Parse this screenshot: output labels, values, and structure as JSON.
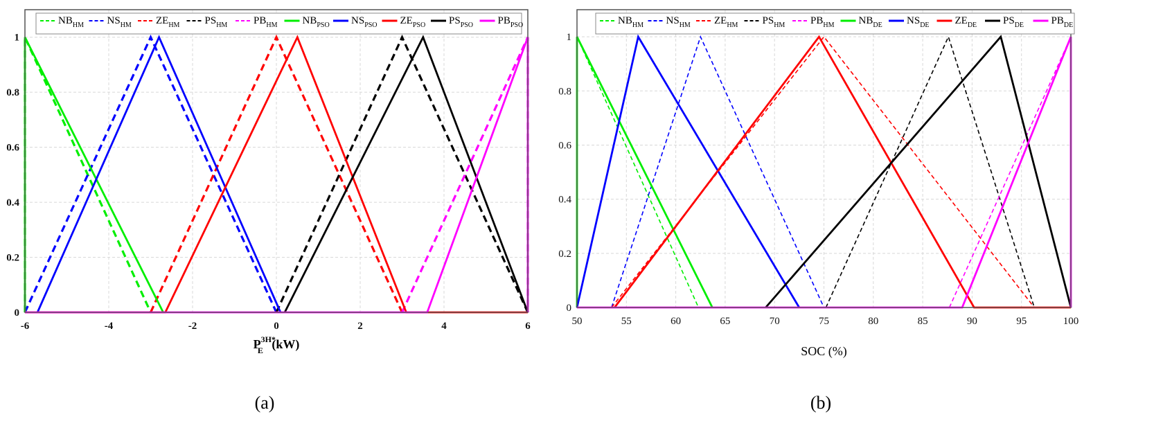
{
  "colors": {
    "NB": "#00ee00",
    "NS": "#0000ff",
    "ZE": "#ff0000",
    "PS": "#000000",
    "PB": "#ff00ff",
    "grid": "#d8d8d8",
    "frame": "#555555",
    "panel_bg": "#ebebeb",
    "tick_text": "#111111"
  },
  "chart_data": [
    {
      "type": "line",
      "panel_label": "(a)",
      "xlabel": {
        "main": "P",
        "sub": "E",
        "sup": "3H*",
        "unit": " (kW)"
      },
      "ylabel": "",
      "xlim": [
        -6,
        6
      ],
      "ylim": [
        0,
        1.1
      ],
      "xticks": [
        -6,
        -4,
        -2,
        0,
        2,
        4,
        6
      ],
      "yticks": [
        0,
        0.2,
        0.4,
        0.6,
        0.8,
        1
      ],
      "ytick_labels": [
        "0",
        "0.2",
        "0.4",
        "0.6",
        "0.8",
        "1"
      ],
      "grid": true,
      "legend_position": "top",
      "series": [
        {
          "name": "NB",
          "sub": "HM",
          "color": "NB",
          "dash": true,
          "x": [
            -6,
            -6,
            -3
          ],
          "y": [
            0,
            1,
            0
          ]
        },
        {
          "name": "NS",
          "sub": "HM",
          "color": "NS",
          "dash": true,
          "x": [
            -6,
            -3,
            0
          ],
          "y": [
            0,
            1,
            0
          ]
        },
        {
          "name": "ZE",
          "sub": "HM",
          "color": "ZE",
          "dash": true,
          "x": [
            -3,
            0,
            3
          ],
          "y": [
            0,
            1,
            0
          ]
        },
        {
          "name": "PS",
          "sub": "HM",
          "color": "PS",
          "dash": true,
          "x": [
            0,
            3,
            6
          ],
          "y": [
            0,
            1,
            0
          ]
        },
        {
          "name": "PB",
          "sub": "HM",
          "color": "PB",
          "dash": true,
          "x": [
            3,
            6,
            6
          ],
          "y": [
            0,
            1,
            0
          ]
        },
        {
          "name": "NB",
          "sub": "PSO",
          "color": "NB",
          "dash": false,
          "x": [
            -6,
            -6,
            -2.7
          ],
          "y": [
            0,
            1,
            0
          ]
        },
        {
          "name": "NS",
          "sub": "PSO",
          "color": "NS",
          "dash": false,
          "x": [
            -5.7,
            -2.8,
            0.1
          ],
          "y": [
            0,
            1,
            0
          ]
        },
        {
          "name": "ZE",
          "sub": "PSO",
          "color": "ZE",
          "dash": false,
          "x": [
            -6,
            -2.65,
            0.5,
            3.1,
            6
          ],
          "y": [
            0,
            0,
            1,
            0,
            0
          ]
        },
        {
          "name": "PS",
          "sub": "PSO",
          "color": "PS",
          "dash": false,
          "x": [
            0.2,
            3.5,
            6
          ],
          "y": [
            0,
            1,
            0
          ]
        },
        {
          "name": "PB",
          "sub": "PSO",
          "color": "PB",
          "dash": false,
          "x": [
            -6,
            3.6,
            6,
            6
          ],
          "y": [
            0,
            0,
            1,
            0
          ]
        }
      ]
    },
    {
      "type": "line",
      "panel_label": "(b)",
      "xlabel": {
        "main": "SOC (%)",
        "sub": "",
        "sup": "",
        "unit": ""
      },
      "ylabel": "",
      "xlim": [
        50,
        100
      ],
      "ylim": [
        0,
        1.1
      ],
      "xticks": [
        50,
        55,
        60,
        65,
        70,
        75,
        80,
        85,
        90,
        95,
        100
      ],
      "yticks": [
        0,
        0.2,
        0.4,
        0.6,
        0.8,
        1
      ],
      "ytick_labels": [
        "0",
        "0.2",
        "0.4",
        "0.6",
        "0.8",
        "1"
      ],
      "grid": true,
      "legend_position": "top",
      "series": [
        {
          "name": "NB",
          "sub": "HM",
          "color": "NB",
          "dash": true,
          "x": [
            50,
            50,
            62.3
          ],
          "y": [
            0,
            1,
            0
          ]
        },
        {
          "name": "NS",
          "sub": "HM",
          "color": "NS",
          "dash": true,
          "x": [
            53.5,
            62.5,
            75
          ],
          "y": [
            0,
            1,
            0
          ]
        },
        {
          "name": "ZE",
          "sub": "HM",
          "color": "ZE",
          "dash": true,
          "x": [
            53.5,
            75,
            96.3
          ],
          "y": [
            0,
            1,
            0
          ]
        },
        {
          "name": "PS",
          "sub": "HM",
          "color": "PS",
          "dash": true,
          "x": [
            75.2,
            87.6,
            96.3
          ],
          "y": [
            0,
            1,
            0
          ]
        },
        {
          "name": "PB",
          "sub": "HM",
          "color": "PB",
          "dash": true,
          "x": [
            87.7,
            100,
            100
          ],
          "y": [
            0,
            1,
            0
          ]
        },
        {
          "name": "NB",
          "sub": "DE",
          "color": "NB",
          "dash": false,
          "x": [
            50,
            50,
            63.7
          ],
          "y": [
            0,
            1,
            0
          ]
        },
        {
          "name": "NS",
          "sub": "DE",
          "color": "NS",
          "dash": false,
          "x": [
            50,
            56.2,
            72.5
          ],
          "y": [
            0,
            1,
            0
          ]
        },
        {
          "name": "ZE",
          "sub": "DE",
          "color": "ZE",
          "dash": false,
          "x": [
            53.8,
            74.5,
            90.2,
            100
          ],
          "y": [
            0,
            1,
            0,
            0
          ]
        },
        {
          "name": "PS",
          "sub": "DE",
          "color": "PS",
          "dash": false,
          "x": [
            69.1,
            92.9,
            100
          ],
          "y": [
            0,
            1,
            0
          ]
        },
        {
          "name": "PB",
          "sub": "DE",
          "color": "PB",
          "dash": false,
          "x": [
            50,
            89,
            100,
            100
          ],
          "y": [
            0,
            0,
            1,
            0
          ]
        }
      ]
    }
  ]
}
